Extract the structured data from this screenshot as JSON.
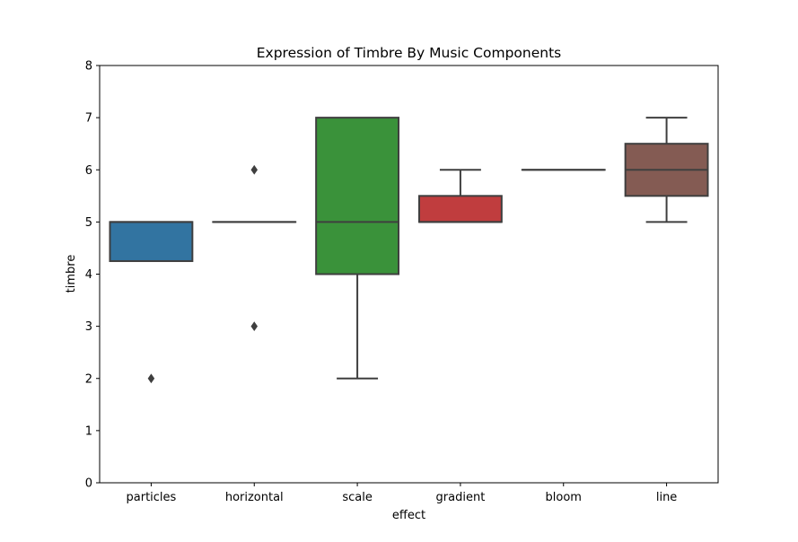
{
  "chart_data": {
    "type": "box",
    "title": "Expression of Timbre By Music Components",
    "xlabel": "effect",
    "ylabel": "timbre",
    "ylim": [
      0,
      8
    ],
    "yticks": [
      0,
      1,
      2,
      3,
      4,
      5,
      6,
      7,
      8
    ],
    "grid": false,
    "categories": [
      "particles",
      "horizontal",
      "scale",
      "gradient",
      "bloom",
      "line"
    ],
    "boxes": [
      {
        "category": "particles",
        "q1": 4.25,
        "median": 5,
        "q3": 5,
        "whisker_low": 4.25,
        "whisker_high": 5,
        "outliers": [
          2
        ],
        "color": "#3274a1"
      },
      {
        "category": "horizontal",
        "q1": 5,
        "median": 5,
        "q3": 5,
        "whisker_low": 5,
        "whisker_high": 5,
        "outliers": [
          6,
          3
        ],
        "color": "#e1812c"
      },
      {
        "category": "scale",
        "q1": 4,
        "median": 5,
        "q3": 7,
        "whisker_low": 2,
        "whisker_high": 7,
        "outliers": [],
        "color": "#3a923a"
      },
      {
        "category": "gradient",
        "q1": 5,
        "median": 5,
        "q3": 5.5,
        "whisker_low": 5,
        "whisker_high": 6,
        "outliers": [],
        "color": "#c03d3e"
      },
      {
        "category": "bloom",
        "q1": 6,
        "median": 6,
        "q3": 6,
        "whisker_low": 6,
        "whisker_high": 6,
        "outliers": [],
        "color": "#9372b2"
      },
      {
        "category": "line",
        "q1": 5.5,
        "median": 6,
        "q3": 6.5,
        "whisker_low": 5,
        "whisker_high": 7,
        "outliers": [],
        "color": "#845b53"
      }
    ],
    "line_color": "#3f3f3f"
  }
}
